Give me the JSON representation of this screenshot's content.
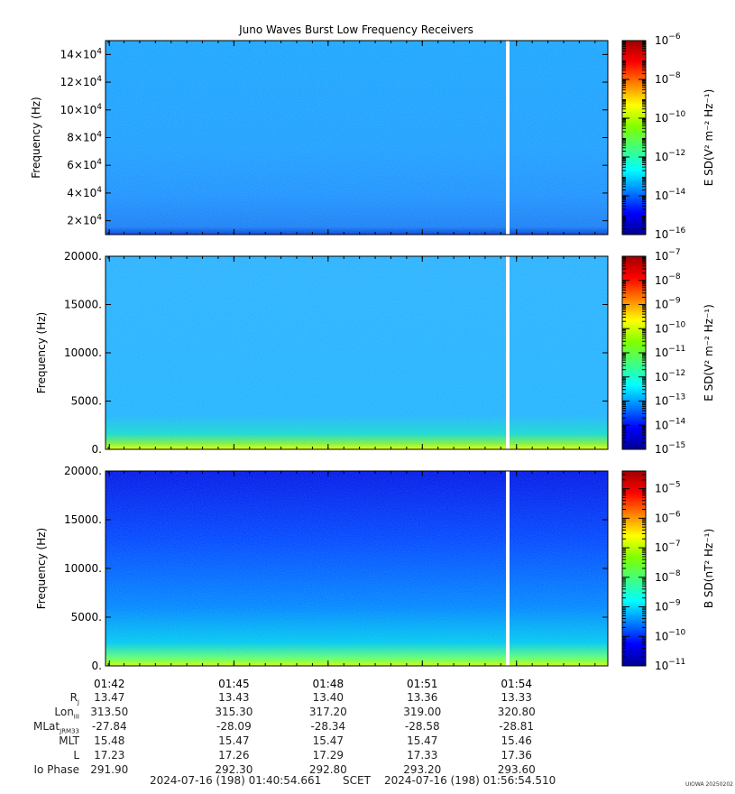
{
  "chart_data": {
    "type": "heatmap",
    "title": "Juno Waves Burst Low Frequency Receivers",
    "time_range": [
      "2024-07-16 (198) 01:40:54.661",
      "2024-07-16 (198) 01:56:54.510"
    ],
    "x_ticks": [
      "01:42",
      "01:45",
      "01:48",
      "01:51",
      "01:54"
    ],
    "panels": [
      {
        "name": "panel-1",
        "ylabel": "Frequency (Hz)",
        "ylim": [
          10000,
          150000
        ],
        "y_ticks": [
          {
            "value": 20000,
            "mant": "2×10",
            "exp": "4"
          },
          {
            "value": 40000,
            "mant": "4×10",
            "exp": "4"
          },
          {
            "value": 60000,
            "mant": "6×10",
            "exp": "4"
          },
          {
            "value": 80000,
            "mant": "8×10",
            "exp": "4"
          },
          {
            "value": 100000,
            "mant": "10×10",
            "exp": "4"
          },
          {
            "value": 120000,
            "mant": "12×10",
            "exp": "4"
          },
          {
            "value": 140000,
            "mant": "14×10",
            "exp": "4"
          }
        ],
        "colorbar_label": "E SD(V² m⁻² Hz⁻¹)",
        "colorbar_log_range": [
          -16,
          -6
        ],
        "colorbar_ticks": [
          -16,
          -14,
          -12,
          -10,
          -8,
          -6
        ]
      },
      {
        "name": "panel-2",
        "ylabel": "Frequency (Hz)",
        "ylim": [
          0,
          20000
        ],
        "y_ticks": [
          {
            "value": 0,
            "text": "0."
          },
          {
            "value": 5000,
            "text": "5000."
          },
          {
            "value": 10000,
            "text": "10000."
          },
          {
            "value": 15000,
            "text": "15000."
          },
          {
            "value": 20000,
            "text": "20000."
          }
        ],
        "colorbar_label": "E SD(V² m⁻² Hz⁻¹)",
        "colorbar_log_range": [
          -15,
          -7
        ],
        "colorbar_ticks": [
          -15,
          -14,
          -13,
          -12,
          -11,
          -10,
          -9,
          -8,
          -7
        ]
      },
      {
        "name": "panel-3",
        "ylabel": "Frequency (Hz)",
        "ylim": [
          0,
          20000
        ],
        "y_ticks": [
          {
            "value": 0,
            "text": "0."
          },
          {
            "value": 5000,
            "text": "5000."
          },
          {
            "value": 10000,
            "text": "10000."
          },
          {
            "value": 15000,
            "text": "15000."
          },
          {
            "value": 20000,
            "text": "20000."
          }
        ],
        "colorbar_label": "B SD(nT² Hz⁻¹)",
        "colorbar_log_range": [
          -11,
          -4.4
        ],
        "colorbar_ticks": [
          -11,
          -10,
          -9,
          -8,
          -7,
          -6,
          -5
        ]
      }
    ],
    "ephemeris": [
      {
        "label": "R",
        "sub": "J",
        "values": [
          "13.47",
          "13.43",
          "13.40",
          "13.36",
          "13.33"
        ]
      },
      {
        "label": "Lon",
        "sub": "III",
        "values": [
          "313.50",
          "315.30",
          "317.20",
          "319.00",
          "320.80"
        ]
      },
      {
        "label": "MLat",
        "sub": "JRM33",
        "values": [
          "-27.84",
          "-28.09",
          "-28.34",
          "-28.58",
          "-28.81"
        ]
      },
      {
        "label": "MLT",
        "sub": "",
        "values": [
          "15.48",
          "15.47",
          "15.47",
          "15.47",
          "15.46"
        ]
      },
      {
        "label": "L",
        "sub": "",
        "values": [
          "17.23",
          "17.26",
          "17.29",
          "17.33",
          "17.36"
        ]
      },
      {
        "label": "Io Phase",
        "sub": "",
        "values": [
          "291.90",
          "292.30",
          "292.80",
          "293.20",
          "293.60"
        ]
      }
    ],
    "footer_start": "2024-07-16 (198) 01:40:54.661",
    "footer_label": "SCET",
    "footer_end": "2024-07-16 (198) 01:56:54.510",
    "stamp": "UIOWA 20250202"
  }
}
